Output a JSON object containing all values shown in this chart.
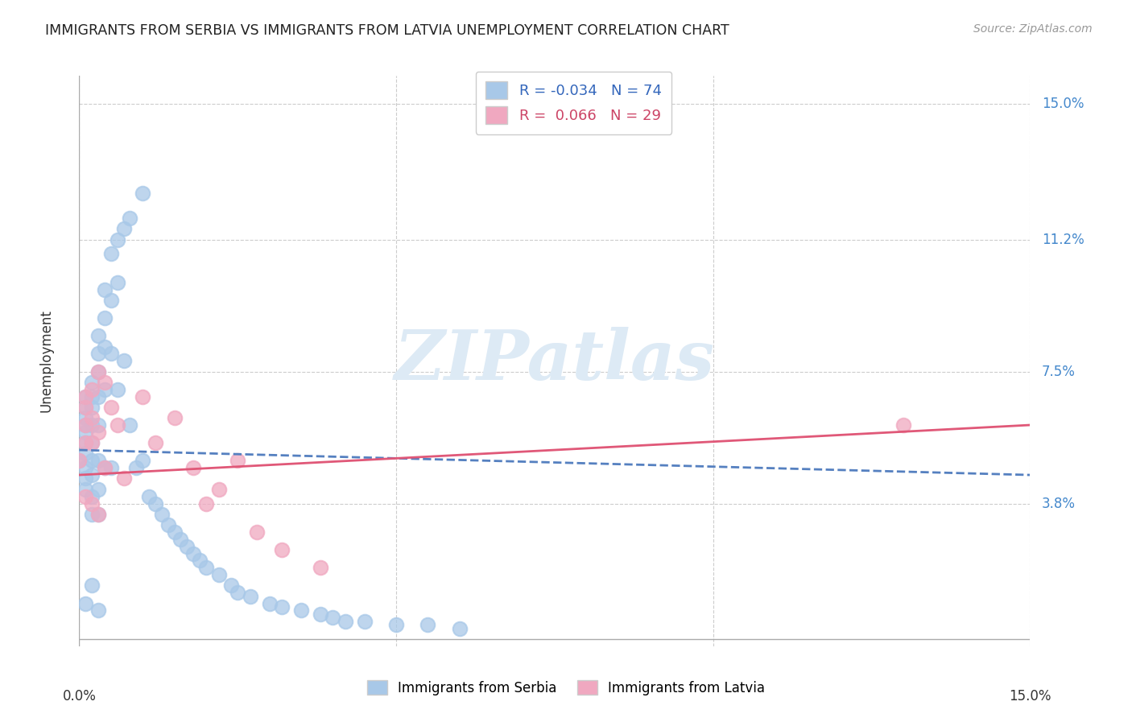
{
  "title": "IMMIGRANTS FROM SERBIA VS IMMIGRANTS FROM LATVIA UNEMPLOYMENT CORRELATION CHART",
  "source": "Source: ZipAtlas.com",
  "ylabel": "Unemployment",
  "ytick_values": [
    0.038,
    0.075,
    0.112,
    0.15
  ],
  "ytick_labels": [
    "3.8%",
    "7.5%",
    "11.2%",
    "15.0%"
  ],
  "xlim": [
    0.0,
    0.15
  ],
  "ylim": [
    -0.002,
    0.158
  ],
  "legend_serbia": "Immigrants from Serbia",
  "legend_latvia": "Immigrants from Latvia",
  "R_serbia": -0.034,
  "N_serbia": 74,
  "R_latvia": 0.066,
  "N_latvia": 29,
  "color_serbia": "#a8c8e8",
  "color_latvia": "#f0a8c0",
  "color_serbia_line": "#5580c0",
  "color_latvia_line": "#e05878",
  "watermark_color": "#ddeaf5",
  "serbia_x": [
    0.0,
    0.001,
    0.001,
    0.001,
    0.001,
    0.001,
    0.001,
    0.001,
    0.001,
    0.001,
    0.001,
    0.002,
    0.002,
    0.002,
    0.002,
    0.002,
    0.002,
    0.002,
    0.002,
    0.002,
    0.003,
    0.003,
    0.003,
    0.003,
    0.003,
    0.003,
    0.003,
    0.003,
    0.004,
    0.004,
    0.004,
    0.004,
    0.004,
    0.005,
    0.005,
    0.005,
    0.005,
    0.006,
    0.006,
    0.006,
    0.007,
    0.007,
    0.008,
    0.008,
    0.009,
    0.01,
    0.01,
    0.011,
    0.012,
    0.013,
    0.014,
    0.015,
    0.016,
    0.017,
    0.018,
    0.019,
    0.02,
    0.022,
    0.024,
    0.025,
    0.027,
    0.03,
    0.032,
    0.035,
    0.038,
    0.04,
    0.042,
    0.045,
    0.05,
    0.055,
    0.06,
    0.001,
    0.002,
    0.003
  ],
  "serbia_y": [
    0.05,
    0.052,
    0.055,
    0.058,
    0.06,
    0.062,
    0.065,
    0.068,
    0.048,
    0.045,
    0.042,
    0.072,
    0.068,
    0.065,
    0.06,
    0.055,
    0.05,
    0.046,
    0.04,
    0.035,
    0.085,
    0.08,
    0.075,
    0.068,
    0.06,
    0.05,
    0.042,
    0.035,
    0.098,
    0.09,
    0.082,
    0.07,
    0.048,
    0.108,
    0.095,
    0.08,
    0.048,
    0.112,
    0.1,
    0.07,
    0.115,
    0.078,
    0.118,
    0.06,
    0.048,
    0.125,
    0.05,
    0.04,
    0.038,
    0.035,
    0.032,
    0.03,
    0.028,
    0.026,
    0.024,
    0.022,
    0.02,
    0.018,
    0.015,
    0.013,
    0.012,
    0.01,
    0.009,
    0.008,
    0.007,
    0.006,
    0.005,
    0.005,
    0.004,
    0.004,
    0.003,
    0.01,
    0.015,
    0.008
  ],
  "latvia_x": [
    0.0,
    0.001,
    0.001,
    0.001,
    0.001,
    0.001,
    0.002,
    0.002,
    0.002,
    0.002,
    0.003,
    0.003,
    0.003,
    0.004,
    0.004,
    0.005,
    0.006,
    0.007,
    0.01,
    0.012,
    0.015,
    0.018,
    0.02,
    0.022,
    0.025,
    0.028,
    0.032,
    0.038,
    0.13
  ],
  "latvia_y": [
    0.05,
    0.055,
    0.06,
    0.065,
    0.068,
    0.04,
    0.07,
    0.062,
    0.055,
    0.038,
    0.075,
    0.058,
    0.035,
    0.072,
    0.048,
    0.065,
    0.06,
    0.045,
    0.068,
    0.055,
    0.062,
    0.048,
    0.038,
    0.042,
    0.05,
    0.03,
    0.025,
    0.02,
    0.06
  ],
  "serbia_trendline": {
    "x_start": 0.0,
    "y_start": 0.053,
    "x_end": 0.15,
    "y_end": 0.046
  },
  "latvia_trendline": {
    "x_start": 0.0,
    "y_start": 0.046,
    "x_end": 0.15,
    "y_end": 0.06
  }
}
